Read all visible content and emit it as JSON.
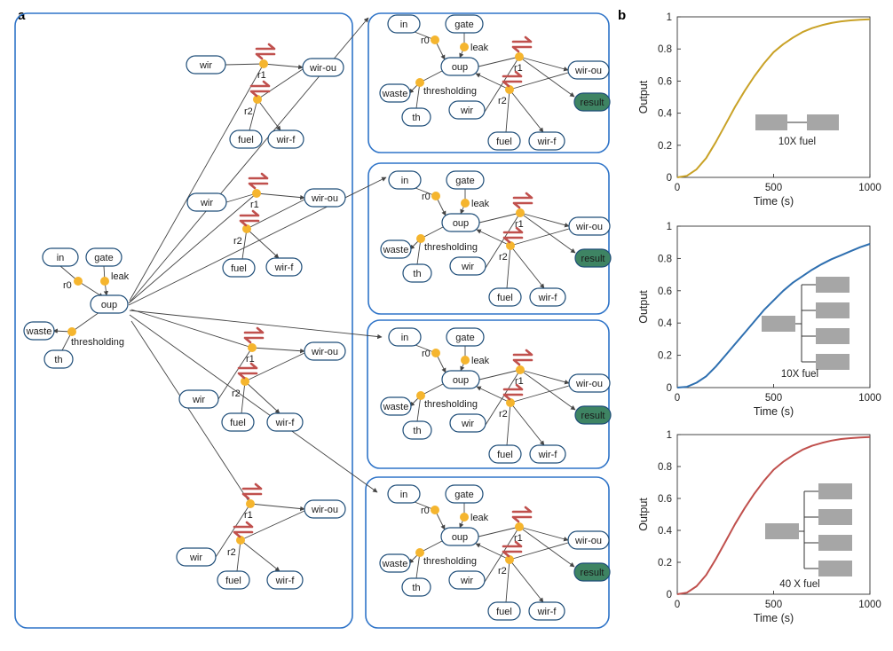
{
  "panels": {
    "a": "a",
    "b": "b"
  },
  "colors": {
    "panel_border": "#2f74c8",
    "node_border": "#1f4e79",
    "reaction": "#f5b52e",
    "reversible_arrow": "#c0504d",
    "result_fill": "#3e8463",
    "edge": "#444444"
  },
  "network": {
    "nodes": {
      "in": "in",
      "gate": "gate",
      "oup": "oup",
      "waste": "waste",
      "th": "th",
      "wir": "wir",
      "wir_ou": "wir-ou",
      "fuel": "fuel",
      "wir_f": "wir-f",
      "result": "result"
    },
    "reactions": {
      "r0": "r0",
      "leak": "leak",
      "thresholding": "thresholding",
      "r1": "r1",
      "r2": "r2"
    }
  },
  "chart_data": [
    {
      "type": "line",
      "xlabel": "Time (s)",
      "ylabel": "Output",
      "xlim": [
        0,
        1000
      ],
      "ylim": [
        0,
        1
      ],
      "xticks": [
        0,
        500,
        1000
      ],
      "yticks": [
        0,
        0.2,
        0.4,
        0.6,
        0.8,
        1
      ],
      "series": [
        {
          "color": "#c9a227",
          "x": [
            0,
            50,
            100,
            150,
            200,
            250,
            300,
            350,
            400,
            450,
            500,
            550,
            600,
            650,
            700,
            750,
            800,
            850,
            900,
            950,
            1000
          ],
          "y": [
            0,
            0.01,
            0.05,
            0.12,
            0.22,
            0.33,
            0.44,
            0.54,
            0.63,
            0.71,
            0.78,
            0.83,
            0.87,
            0.905,
            0.93,
            0.948,
            0.962,
            0.972,
            0.978,
            0.982,
            0.985
          ]
        }
      ],
      "inset_label": "10X fuel",
      "inset_shape": "chain-2"
    },
    {
      "type": "line",
      "xlabel": "Time (s)",
      "ylabel": "Output",
      "xlim": [
        0,
        1000
      ],
      "ylim": [
        0,
        1
      ],
      "xticks": [
        0,
        500,
        1000
      ],
      "yticks": [
        0,
        0.2,
        0.4,
        0.6,
        0.8,
        1
      ],
      "series": [
        {
          "color": "#2e6fb0",
          "x": [
            0,
            50,
            100,
            150,
            200,
            250,
            300,
            350,
            400,
            450,
            500,
            550,
            600,
            650,
            700,
            750,
            800,
            850,
            900,
            950,
            1000
          ],
          "y": [
            0,
            0.005,
            0.03,
            0.07,
            0.13,
            0.2,
            0.27,
            0.34,
            0.41,
            0.48,
            0.54,
            0.6,
            0.65,
            0.69,
            0.73,
            0.765,
            0.795,
            0.82,
            0.845,
            0.87,
            0.89
          ]
        }
      ],
      "inset_label": "10X fuel",
      "inset_shape": "fan-4"
    },
    {
      "type": "line",
      "xlabel": "Time (s)",
      "ylabel": "Output",
      "xlim": [
        0,
        1000
      ],
      "ylim": [
        0,
        1
      ],
      "xticks": [
        0,
        500,
        1000
      ],
      "yticks": [
        0,
        0.2,
        0.4,
        0.6,
        0.8,
        1
      ],
      "series": [
        {
          "color": "#c0504d",
          "x": [
            0,
            50,
            100,
            150,
            200,
            250,
            300,
            350,
            400,
            450,
            500,
            550,
            600,
            650,
            700,
            750,
            800,
            850,
            900,
            950,
            1000
          ],
          "y": [
            0,
            0.01,
            0.05,
            0.12,
            0.22,
            0.33,
            0.44,
            0.54,
            0.63,
            0.71,
            0.78,
            0.83,
            0.87,
            0.905,
            0.93,
            0.948,
            0.962,
            0.972,
            0.978,
            0.982,
            0.985
          ]
        }
      ],
      "inset_label": "40 X fuel",
      "inset_shape": "fan-4"
    }
  ]
}
